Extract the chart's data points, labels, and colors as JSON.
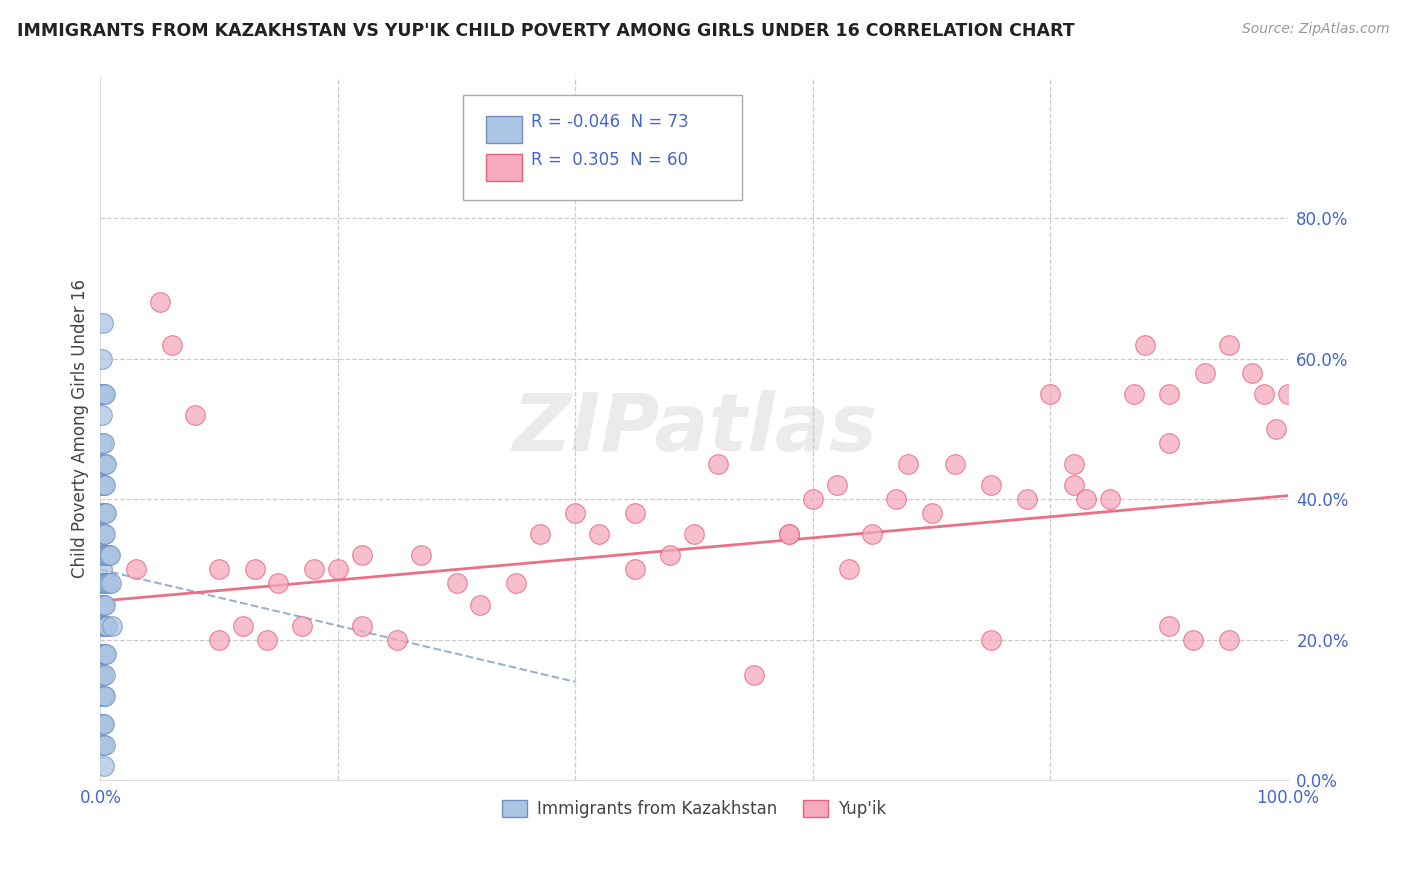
{
  "title": "IMMIGRANTS FROM KAZAKHSTAN VS YUP'IK CHILD POVERTY AMONG GIRLS UNDER 16 CORRELATION CHART",
  "source": "Source: ZipAtlas.com",
  "ylabel": "Child Poverty Among Girls Under 16",
  "legend_labels": [
    "Immigrants from Kazakhstan",
    "Yup'ik"
  ],
  "r_kazakhstan": -0.046,
  "n_kazakhstan": 73,
  "r_yupik": 0.305,
  "n_yupik": 60,
  "xlim": [
    0,
    1.0
  ],
  "ylim": [
    0,
    1.0
  ],
  "color_kazakhstan": "#aac4e2",
  "color_yupik": "#f5aabe",
  "line_color_kazakhstan": "#7090c0",
  "line_color_yupik": "#e8607a",
  "grid_color": "#cccccc",
  "background_color": "#ffffff",
  "tick_label_color": "#4466cc",
  "kazakhstan_x": [
    0.0,
    0.0,
    0.001,
    0.001,
    0.001,
    0.001,
    0.001,
    0.001,
    0.001,
    0.001,
    0.001,
    0.001,
    0.001,
    0.001,
    0.001,
    0.001,
    0.001,
    0.001,
    0.002,
    0.002,
    0.002,
    0.002,
    0.002,
    0.002,
    0.002,
    0.002,
    0.002,
    0.002,
    0.002,
    0.002,
    0.002,
    0.002,
    0.002,
    0.003,
    0.003,
    0.003,
    0.003,
    0.003,
    0.003,
    0.003,
    0.003,
    0.003,
    0.003,
    0.003,
    0.003,
    0.003,
    0.004,
    0.004,
    0.004,
    0.004,
    0.004,
    0.004,
    0.004,
    0.004,
    0.004,
    0.004,
    0.004,
    0.004,
    0.004,
    0.005,
    0.005,
    0.005,
    0.005,
    0.005,
    0.005,
    0.006,
    0.006,
    0.006,
    0.007,
    0.007,
    0.008,
    0.009,
    0.01
  ],
  "kazakhstan_y": [
    0.32,
    0.28,
    0.48,
    0.38,
    0.52,
    0.42,
    0.3,
    0.22,
    0.18,
    0.12,
    0.08,
    0.55,
    0.45,
    0.35,
    0.25,
    0.15,
    0.05,
    0.6,
    0.32,
    0.28,
    0.22,
    0.45,
    0.38,
    0.18,
    0.12,
    0.08,
    0.55,
    0.42,
    0.35,
    0.25,
    0.15,
    0.05,
    0.65,
    0.32,
    0.28,
    0.22,
    0.48,
    0.38,
    0.18,
    0.12,
    0.08,
    0.55,
    0.42,
    0.35,
    0.25,
    0.02,
    0.32,
    0.28,
    0.22,
    0.45,
    0.38,
    0.18,
    0.12,
    0.55,
    0.42,
    0.35,
    0.25,
    0.15,
    0.05,
    0.32,
    0.28,
    0.22,
    0.45,
    0.38,
    0.18,
    0.32,
    0.28,
    0.22,
    0.32,
    0.28,
    0.32,
    0.28,
    0.22
  ],
  "yupik_x": [
    0.03,
    0.05,
    0.06,
    0.08,
    0.1,
    0.1,
    0.12,
    0.13,
    0.14,
    0.15,
    0.17,
    0.18,
    0.2,
    0.22,
    0.22,
    0.25,
    0.27,
    0.3,
    0.32,
    0.35,
    0.37,
    0.4,
    0.42,
    0.45,
    0.48,
    0.5,
    0.52,
    0.55,
    0.58,
    0.6,
    0.62,
    0.63,
    0.65,
    0.67,
    0.7,
    0.72,
    0.75,
    0.78,
    0.8,
    0.82,
    0.83,
    0.85,
    0.87,
    0.88,
    0.9,
    0.9,
    0.92,
    0.93,
    0.95,
    0.97,
    0.98,
    0.99,
    1.0,
    0.45,
    0.58,
    0.68,
    0.75,
    0.82,
    0.9,
    0.95
  ],
  "yupik_y": [
    0.3,
    0.68,
    0.62,
    0.52,
    0.3,
    0.2,
    0.22,
    0.3,
    0.2,
    0.28,
    0.22,
    0.3,
    0.3,
    0.22,
    0.32,
    0.2,
    0.32,
    0.28,
    0.25,
    0.28,
    0.35,
    0.38,
    0.35,
    0.3,
    0.32,
    0.35,
    0.45,
    0.15,
    0.35,
    0.4,
    0.42,
    0.3,
    0.35,
    0.4,
    0.38,
    0.45,
    0.42,
    0.4,
    0.55,
    0.42,
    0.4,
    0.4,
    0.55,
    0.62,
    0.55,
    0.48,
    0.2,
    0.58,
    0.62,
    0.58,
    0.55,
    0.5,
    0.55,
    0.38,
    0.35,
    0.45,
    0.2,
    0.45,
    0.22,
    0.2
  ],
  "kaz_line_x": [
    0.0,
    0.4
  ],
  "kaz_line_y": [
    0.3,
    0.14
  ],
  "yup_line_x": [
    0.0,
    1.0
  ],
  "yup_line_y": [
    0.255,
    0.405
  ]
}
